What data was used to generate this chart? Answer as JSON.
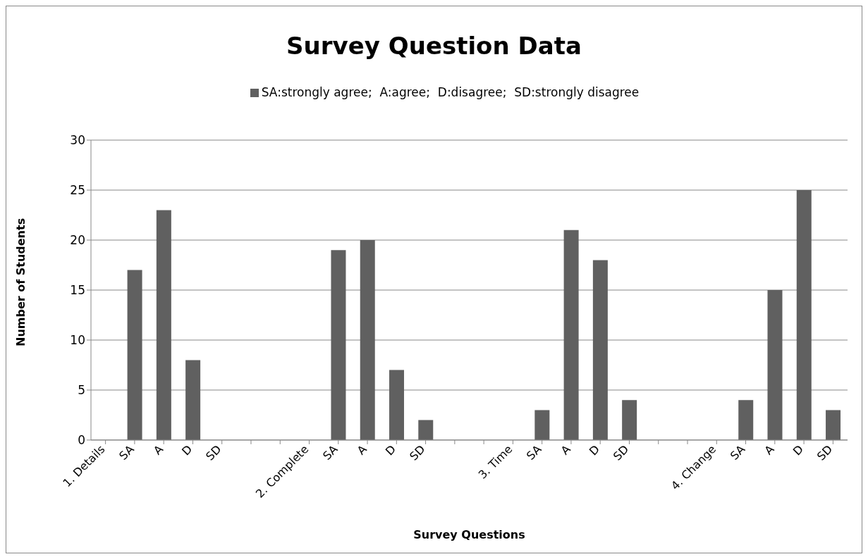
{
  "chart_data": {
    "type": "bar",
    "title": "Survey Question Data",
    "xlabel": "Survey Questions",
    "ylabel": "Number of Students",
    "categories": [
      "1. Details",
      "SA",
      "A",
      "D",
      "SD",
      null,
      null,
      "2. Complete",
      "SA",
      "A",
      "D",
      "SD",
      null,
      null,
      "3. Time",
      "SA",
      "A",
      "D",
      "SD",
      null,
      null,
      "4. Change",
      "SA",
      "A",
      "D",
      "SD"
    ],
    "series": [
      {
        "name": "SA:strongly agree;  A:agree;  D:disagree;  SD:strongly disagree",
        "color": "#606060",
        "values": [
          null,
          17,
          23,
          8,
          0,
          null,
          null,
          null,
          19,
          20,
          7,
          2,
          null,
          null,
          null,
          3,
          21,
          18,
          4,
          null,
          null,
          null,
          4,
          15,
          25,
          3
        ]
      }
    ],
    "ylim": [
      0,
      30
    ],
    "yticks": [
      0,
      5,
      10,
      15,
      20,
      25,
      30
    ],
    "grid": "y",
    "legend": "top"
  }
}
